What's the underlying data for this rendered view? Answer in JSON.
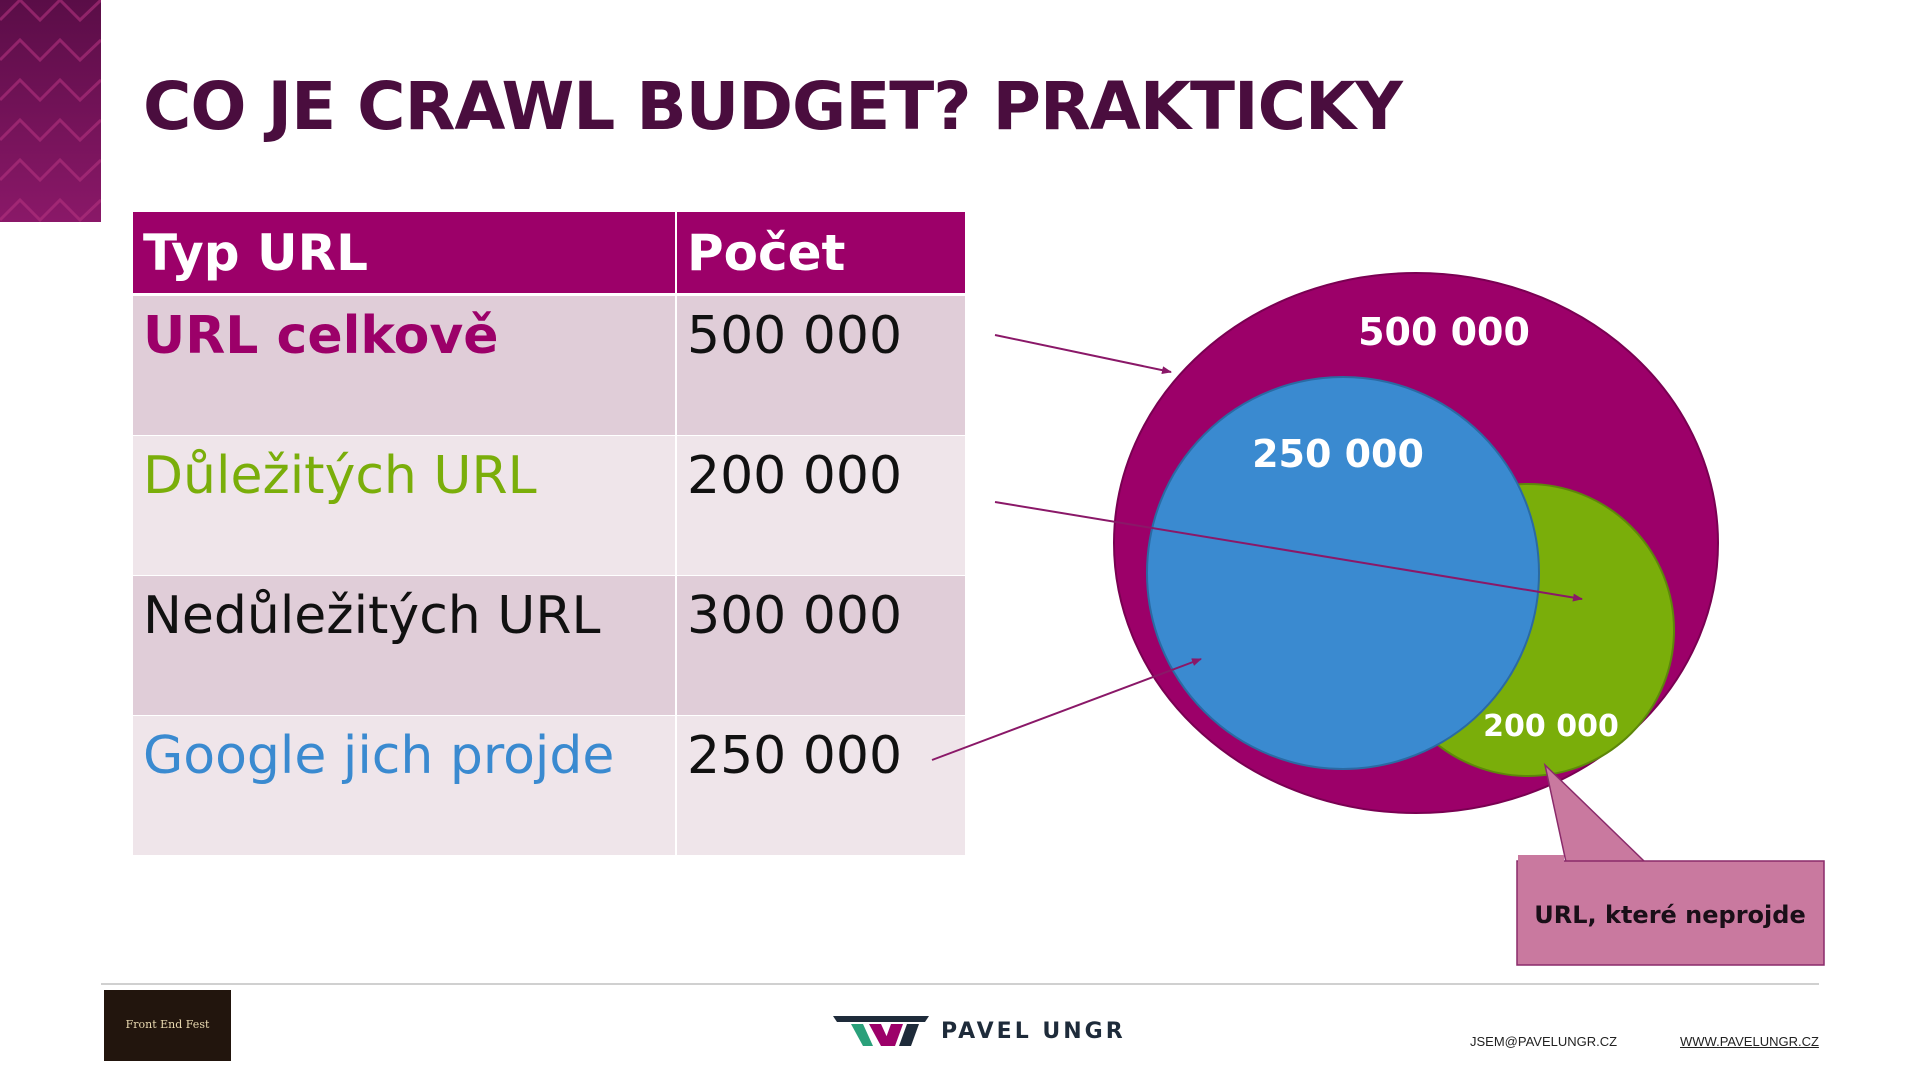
{
  "slide": {
    "title": "CO JE CRAWL BUDGET? PRAKTICKY"
  },
  "table": {
    "headers": [
      "Typ URL",
      "Počet"
    ],
    "rows": [
      {
        "label": "URL celkově",
        "value": "500 000"
      },
      {
        "label": "Důležitých URL",
        "value": "200 000"
      },
      {
        "label": "Nedůležitých URL",
        "value": "300 000"
      },
      {
        "label": "Google jich projde",
        "value": "250 000"
      }
    ]
  },
  "diagram": {
    "total_label": "500 000",
    "crawled_label": "250 000",
    "important_label": "200 000",
    "callout_label": "URL, které neprojde"
  },
  "colors": {
    "total": "#9c0069",
    "crawled": "#3a8ad0",
    "important": "#7aae0a",
    "callout": "#c9799f",
    "title": "#4a0d3e"
  },
  "footer": {
    "logo_text": "Front End Fest",
    "brand_name": "PAVEL UNGR",
    "email": "JSEM@PAVELUNGR.CZ",
    "website": "WWW.PAVELUNGR.CZ"
  }
}
